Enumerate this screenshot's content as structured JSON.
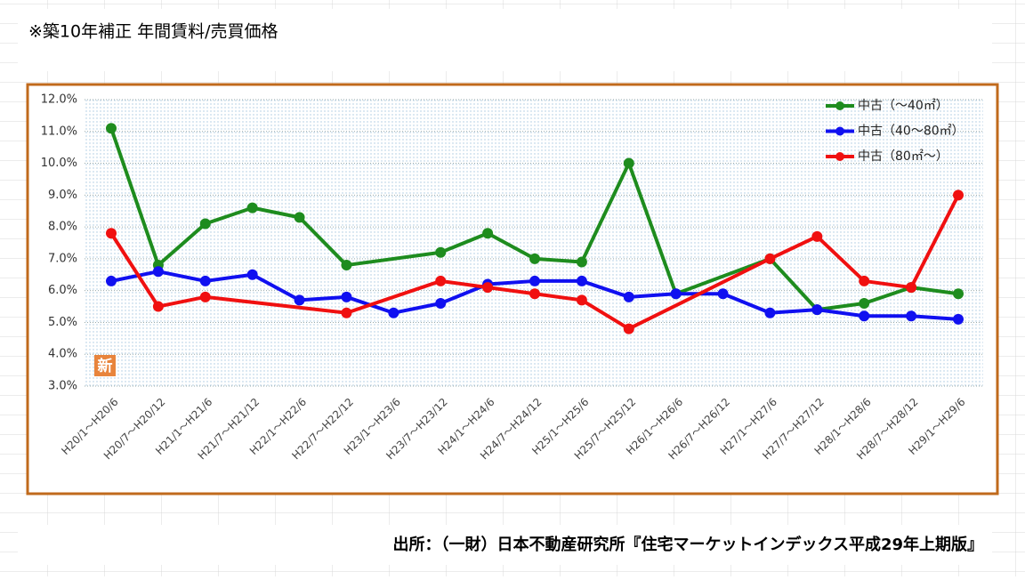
{
  "chart_data": {
    "type": "line",
    "title": "※築10年補正 年間賃料/売買価格",
    "source": "出所：（一財）日本不動産研究所『住宅マーケットインデックス平成29年上期版』",
    "badge": "新",
    "categories": [
      "H20/1～H20/6",
      "H20/7～H20/12",
      "H21/1～H21/6",
      "H21/7～H21/12",
      "H22/1～H22/6",
      "H22/7～H22/12",
      "H23/1～H23/6",
      "H23/7～H23/12",
      "H24/1～H24/6",
      "H24/7～H24/12",
      "H25/1～H25/6",
      "H25/7～H25/12",
      "H26/1～H26/6",
      "H26/7～H26/12",
      "H27/1～H27/6",
      "H27/7～H27/12",
      "H28/1～H28/6",
      "H28/7～H28/12",
      "H29/1～H29/6"
    ],
    "series": [
      {
        "name": "中古（～40㎡）",
        "color": "#1e8c1e",
        "values": [
          11.1,
          6.8,
          8.1,
          8.6,
          8.3,
          6.8,
          null,
          7.2,
          7.8,
          7.0,
          6.9,
          10.0,
          5.9,
          null,
          7.0,
          5.4,
          5.6,
          6.1,
          5.9
        ]
      },
      {
        "name": "中古（40～80㎡）",
        "color": "#1010f0",
        "values": [
          6.3,
          6.6,
          6.3,
          6.5,
          5.7,
          5.8,
          5.3,
          5.6,
          6.2,
          6.3,
          6.3,
          5.8,
          5.9,
          5.9,
          5.3,
          5.4,
          5.2,
          5.2,
          5.1
        ]
      },
      {
        "name": "中古（80㎡～）",
        "color": "#f01010",
        "values": [
          7.8,
          5.5,
          5.8,
          null,
          null,
          5.3,
          null,
          6.3,
          6.1,
          5.9,
          5.7,
          4.8,
          null,
          null,
          7.0,
          7.7,
          6.3,
          6.1,
          9.0
        ]
      }
    ],
    "ylim": [
      3,
      12
    ],
    "yticks": [
      {
        "value": 3,
        "label": "3.0%"
      },
      {
        "value": 4,
        "label": "4.0%"
      },
      {
        "value": 5,
        "label": "5.0%"
      },
      {
        "value": 6,
        "label": "6.0%"
      },
      {
        "value": 7,
        "label": "7.0%"
      },
      {
        "value": 8,
        "label": "8.0%"
      },
      {
        "value": 9,
        "label": "9.0%"
      },
      {
        "value": 10,
        "label": "10.0%"
      },
      {
        "value": 11,
        "label": "11.0%"
      },
      {
        "value": 12,
        "label": "12.0%"
      }
    ],
    "grid": true,
    "span_gaps": true,
    "legend": "top-right"
  }
}
